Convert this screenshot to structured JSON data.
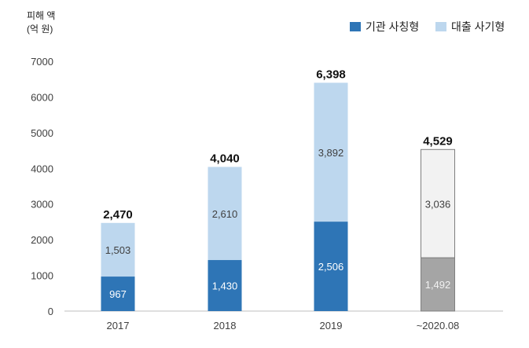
{
  "chart_data": {
    "type": "bar",
    "stacked": true,
    "ylabel_lines": [
      "피해 액",
      "(억 원)"
    ],
    "ylim": [
      0,
      7000
    ],
    "yticks": [
      0,
      1000,
      2000,
      3000,
      4000,
      5000,
      6000,
      7000
    ],
    "categories": [
      "2017",
      "2018",
      "2019",
      "~2020.08"
    ],
    "series": [
      {
        "name": "기관 사칭형",
        "values": [
          967,
          1430,
          2506,
          1492
        ]
      },
      {
        "name": "대출 사기형",
        "values": [
          1503,
          2610,
          3892,
          3036
        ]
      }
    ],
    "segment_labels": {
      "기관 사칭형": [
        "967",
        "1,430",
        "2,506",
        "1,492"
      ],
      "대출 사기형": [
        "1,503",
        "2,610",
        "3,892",
        "3,036"
      ]
    },
    "totals": [
      "2,470",
      "4,040",
      "6,398",
      "4,529"
    ],
    "legend_position": "top-right",
    "colors": {
      "series_bottom": "#2e75b6",
      "series_top": "#bdd7ee",
      "partial_bottom": "#a5a5a5",
      "partial_top": "#f2f2f2",
      "partial_edge": "#7f7f7f",
      "axis": "#bfbfbf"
    },
    "partial_category_index": 3
  }
}
